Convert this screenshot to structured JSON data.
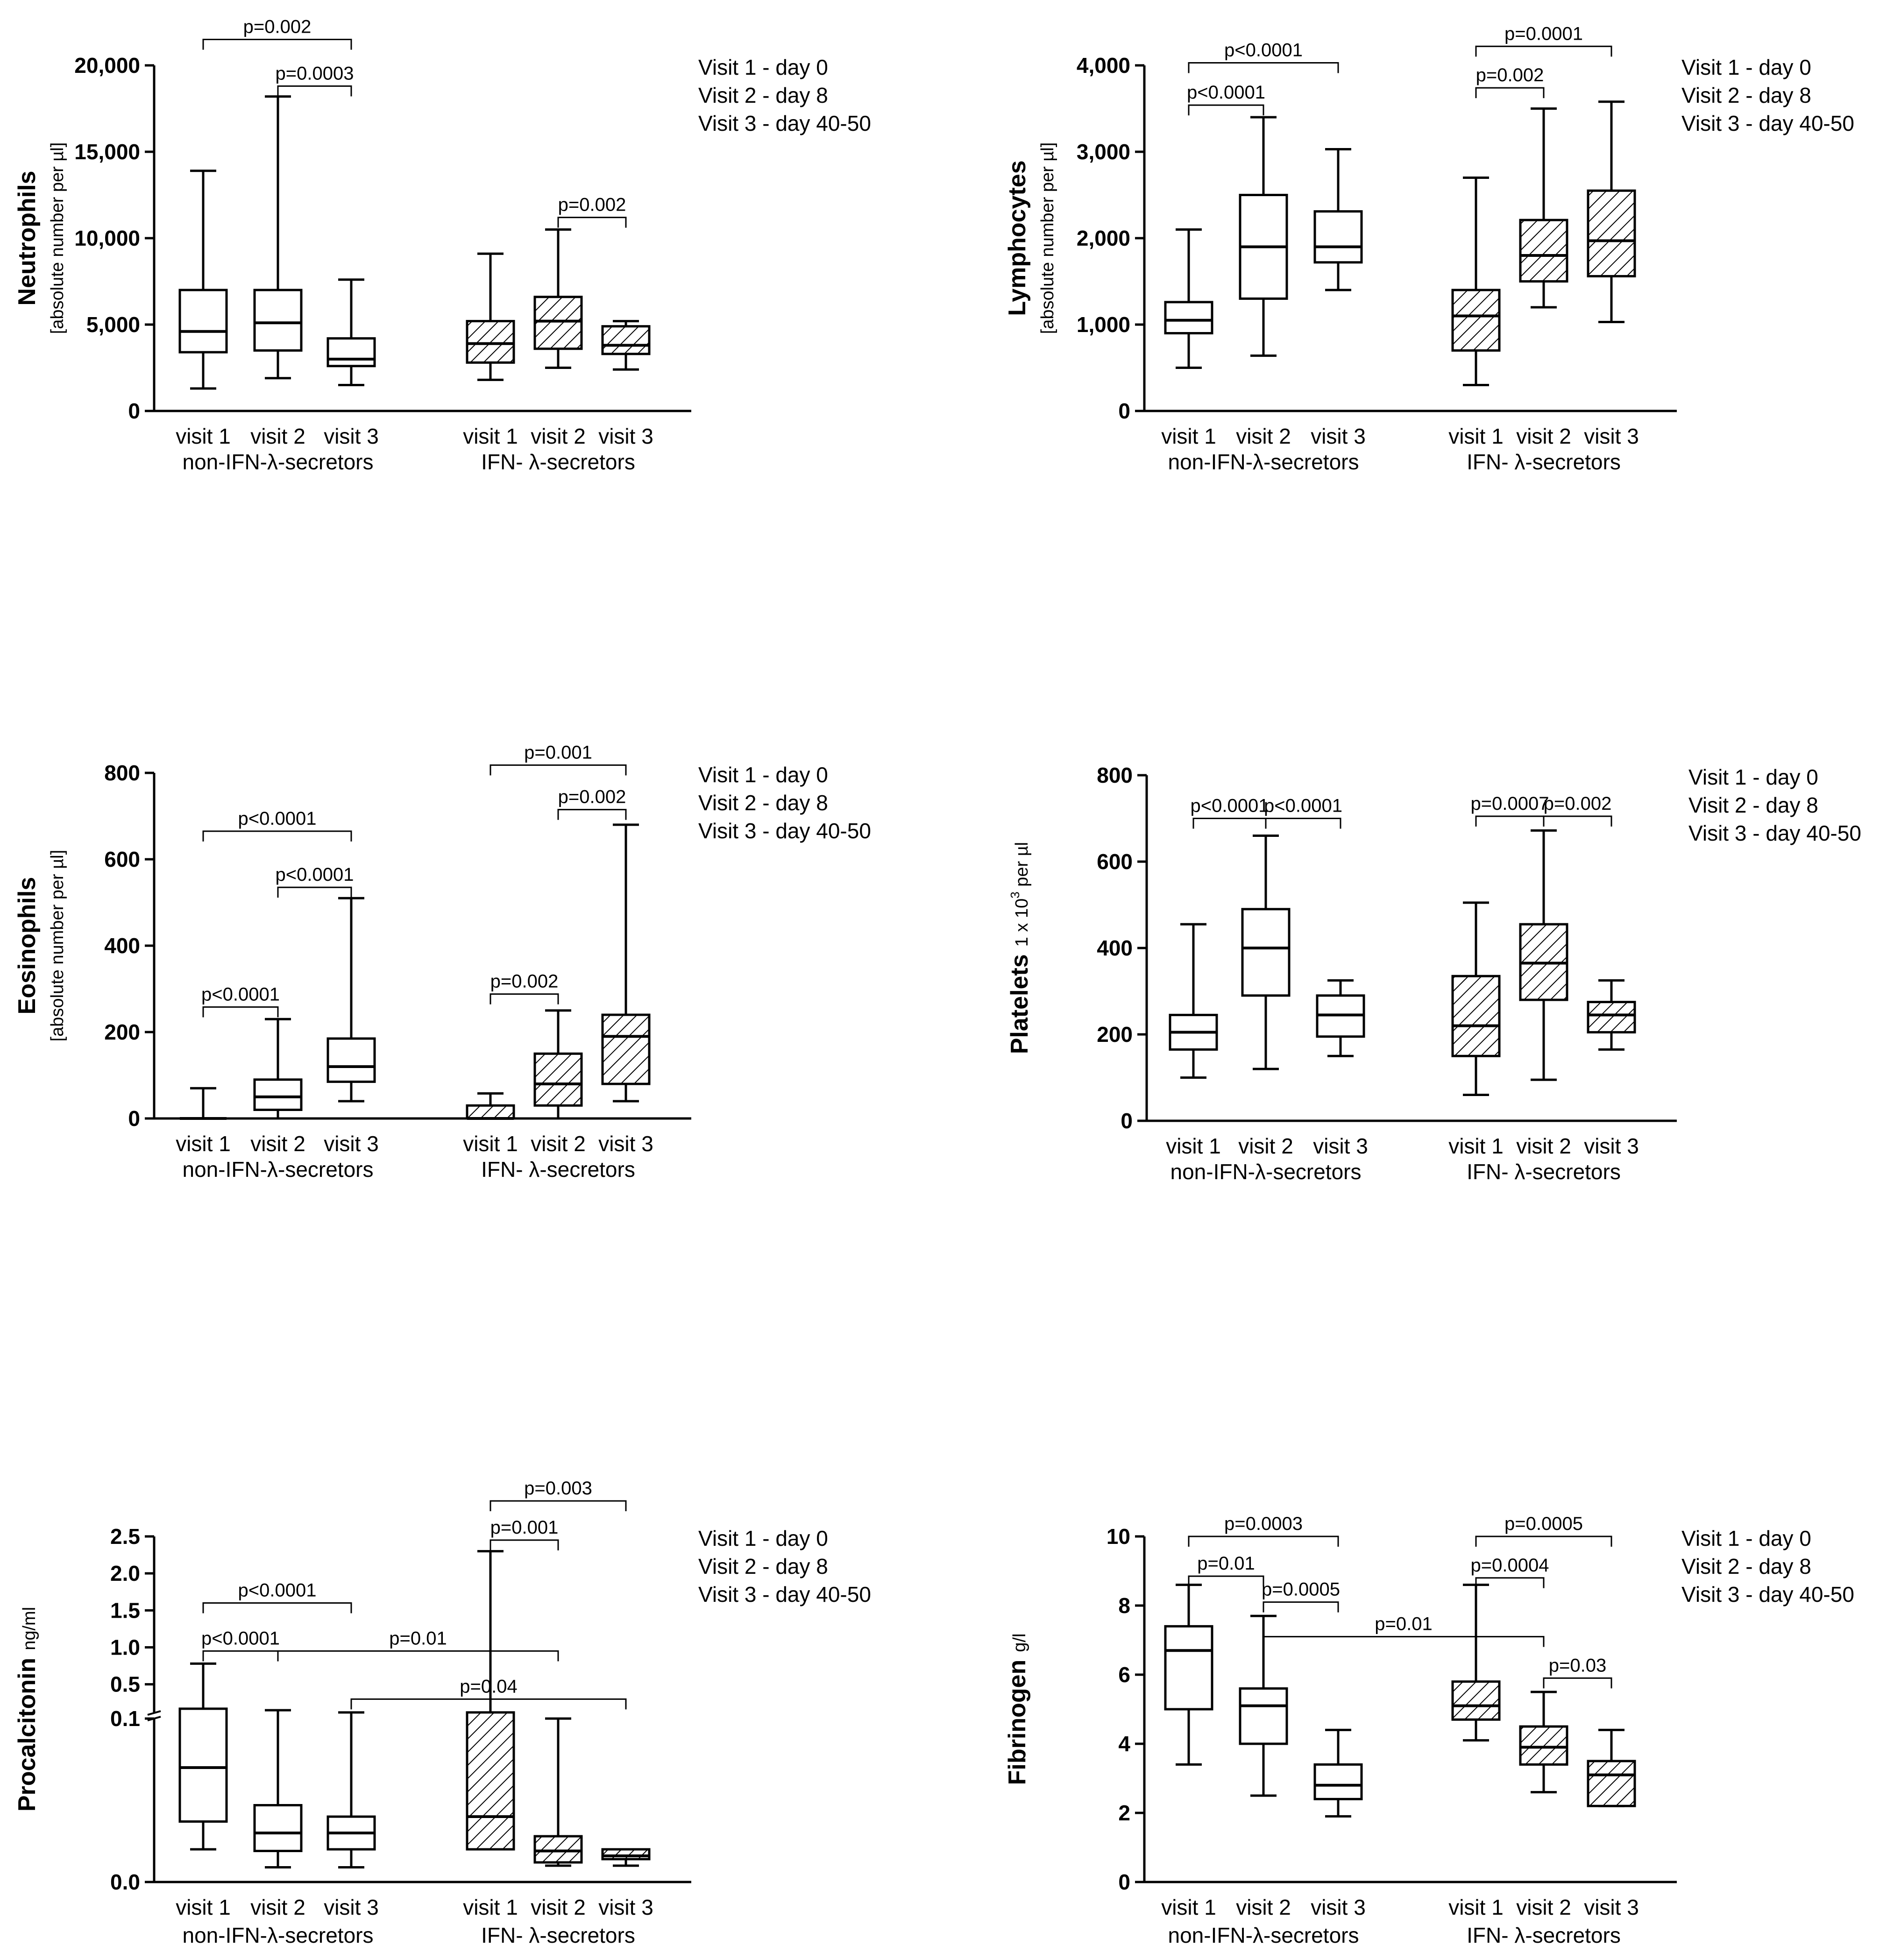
{
  "panels": [
    {
      "ylabel": "Neutrophils",
      "yunit": "[absolute number per  µl]",
      "legend": [
        "Visit 1 - day 0",
        "Visit 2 - day 8",
        "Visit 3 - day 40-50"
      ],
      "chart_data": {
        "type": "box",
        "categories": [
          "visit 1",
          "visit 2",
          "visit 3",
          "visit 1",
          "visit 2",
          "visit 3"
        ],
        "groups": [
          "non-IFN-λ-secretors",
          "IFN- λ-secretors"
        ],
        "yticks": [
          "0",
          "5,000",
          "10,000",
          "15,000",
          "20,000"
        ],
        "ylim": [
          0,
          20000
        ],
        "boxes": [
          {
            "min": 1300,
            "q1": 3400,
            "median": 4600,
            "q3": 7000,
            "max": 13900,
            "hatched": false
          },
          {
            "min": 1900,
            "q1": 3500,
            "median": 5100,
            "q3": 7000,
            "max": 18200,
            "hatched": false
          },
          {
            "min": 1500,
            "q1": 2600,
            "median": 3000,
            "q3": 4200,
            "max": 7600,
            "hatched": false
          },
          {
            "min": 1800,
            "q1": 2800,
            "median": 3900,
            "q3": 5200,
            "max": 9100,
            "hatched": true
          },
          {
            "min": 2500,
            "q1": 3600,
            "median": 5200,
            "q3": 6600,
            "max": 10500,
            "hatched": true
          },
          {
            "min": 2400,
            "q1": 3300,
            "median": 3800,
            "q3": 4900,
            "max": 5200,
            "hatched": true
          }
        ],
        "annotations": [
          {
            "text": "p=0.002",
            "from": 0,
            "to": 2,
            "y": 21500
          },
          {
            "text": "p=0.0003",
            "from": 1,
            "to": 2,
            "y": 18800
          },
          {
            "text": "p=0.002",
            "from": 4,
            "to": 5,
            "y": 11200
          }
        ]
      }
    },
    {
      "ylabel": "Lymphocytes",
      "yunit": "[absolute number per  µl]",
      "legend": [
        "Visit 1 - day 0",
        "Visit 2 - day 8",
        "Visit 3 - day 40-50"
      ],
      "chart_data": {
        "type": "box",
        "categories": [
          "visit 1",
          "visit 2",
          "visit 3",
          "visit 1",
          "visit 2",
          "visit 3"
        ],
        "groups": [
          "non-IFN-λ-secretors",
          "IFN- λ-secretors"
        ],
        "yticks": [
          "0",
          "1,000",
          "2,000",
          "3,000",
          "4,000"
        ],
        "ylim": [
          0,
          4000
        ],
        "boxes": [
          {
            "min": 500,
            "q1": 900,
            "median": 1050,
            "q3": 1260,
            "max": 2100,
            "hatched": false
          },
          {
            "min": 640,
            "q1": 1300,
            "median": 1900,
            "q3": 2500,
            "max": 3400,
            "hatched": false
          },
          {
            "min": 1400,
            "q1": 1720,
            "median": 1900,
            "q3": 2310,
            "max": 3030,
            "hatched": false
          },
          {
            "min": 300,
            "q1": 700,
            "median": 1100,
            "q3": 1400,
            "max": 2700,
            "hatched": true
          },
          {
            "min": 1200,
            "q1": 1500,
            "median": 1800,
            "q3": 2210,
            "max": 3500,
            "hatched": true
          },
          {
            "min": 1030,
            "q1": 1560,
            "median": 1970,
            "q3": 2550,
            "max": 3580,
            "hatched": true
          }
        ],
        "annotations": [
          {
            "text": "p<0.0001",
            "from": 0,
            "to": 2,
            "y": 4030
          },
          {
            "text": "p<0.0001",
            "from": 0,
            "to": 1,
            "y": 3540
          },
          {
            "text": "p=0.0001",
            "from": 3,
            "to": 5,
            "y": 4220
          },
          {
            "text": "p=0.002",
            "from": 3,
            "to": 4,
            "y": 3740
          }
        ]
      }
    },
    {
      "ylabel": "Eosinophils",
      "yunit": "[absolute number per  µl]",
      "legend": [
        "Visit 1 - day 0",
        "Visit 2 - day 8",
        "Visit 3 - day 40-50"
      ],
      "chart_data": {
        "type": "box",
        "categories": [
          "visit 1",
          "visit 2",
          "visit 3",
          "visit 1",
          "visit 2",
          "visit 3"
        ],
        "groups": [
          "non-IFN-λ-secretors",
          "IFN- λ-secretors"
        ],
        "yticks": [
          "0",
          "200",
          "400",
          "600",
          "800"
        ],
        "ylim": [
          0,
          800
        ],
        "boxes": [
          {
            "min": 0,
            "q1": 0,
            "median": 0,
            "q3": 0,
            "max": 70,
            "hatched": false
          },
          {
            "min": 0,
            "q1": 20,
            "median": 50,
            "q3": 90,
            "max": 230,
            "hatched": false
          },
          {
            "min": 40,
            "q1": 85,
            "median": 120,
            "q3": 185,
            "max": 510,
            "hatched": false
          },
          {
            "min": 0,
            "q1": 0,
            "median": 0,
            "q3": 30,
            "max": 58,
            "hatched": true
          },
          {
            "min": 0,
            "q1": 30,
            "median": 80,
            "q3": 150,
            "max": 250,
            "hatched": true
          },
          {
            "min": 40,
            "q1": 80,
            "median": 190,
            "q3": 240,
            "max": 680,
            "hatched": true
          }
        ],
        "annotations": [
          {
            "text": "p<0.0001",
            "from": 0,
            "to": 2,
            "y": 665
          },
          {
            "text": "p<0.0001",
            "from": 1,
            "to": 2,
            "y": 535
          },
          {
            "text": "p<0.0001",
            "from": 0,
            "to": 1,
            "y": 258
          },
          {
            "text": "p=0.001",
            "from": 3,
            "to": 5,
            "y": 818
          },
          {
            "text": "p=0.002",
            "from": 4,
            "to": 5,
            "y": 715
          },
          {
            "text": "p=0.002",
            "from": 3,
            "to": 4,
            "y": 288
          }
        ]
      }
    },
    {
      "ylabel": "Platelets",
      "yunit_parts": [
        "1 x 10",
        "3",
        " per µl"
      ],
      "legend": [
        "Visit 1 - day 0",
        "Visit 2 - day 8",
        "Visit 3 - day 40-50"
      ],
      "chart_data": {
        "type": "box",
        "categories": [
          "visit 1",
          "visit 2",
          "visit 3",
          "visit 1",
          "visit 2",
          "visit 3"
        ],
        "groups": [
          "non-IFN-λ-secretors",
          "IFN- λ-secretors"
        ],
        "yticks": [
          "0",
          "200",
          "400",
          "600",
          "800"
        ],
        "ylim": [
          0,
          800
        ],
        "boxes": [
          {
            "min": 100,
            "q1": 165,
            "median": 205,
            "q3": 245,
            "max": 455,
            "hatched": false
          },
          {
            "min": 120,
            "q1": 290,
            "median": 400,
            "q3": 490,
            "max": 660,
            "hatched": false
          },
          {
            "min": 150,
            "q1": 195,
            "median": 245,
            "q3": 290,
            "max": 325,
            "hatched": false
          },
          {
            "min": 60,
            "q1": 150,
            "median": 220,
            "q3": 335,
            "max": 505,
            "hatched": true
          },
          {
            "min": 95,
            "q1": 280,
            "median": 365,
            "q3": 455,
            "max": 672,
            "hatched": true
          },
          {
            "min": 165,
            "q1": 205,
            "median": 245,
            "q3": 275,
            "max": 325,
            "hatched": true
          }
        ],
        "annotations": [
          {
            "text": "p<0.0001",
            "from": 0,
            "to": 1,
            "y": 700
          },
          {
            "text": "p<0.0001",
            "from": 1,
            "to": 2,
            "y": 700
          },
          {
            "text": "p=0.0007",
            "from": 3,
            "to": 4,
            "y": 705
          },
          {
            "text": "p=0.002",
            "from": 4,
            "to": 5,
            "y": 705
          }
        ]
      }
    },
    {
      "ylabel": "Procalcitonin",
      "yunit": "ng/ml",
      "legend": [
        "Visit 1 - day 0",
        "Visit 2 - day 8",
        "Visit 3 - day 40-50"
      ],
      "chart_data": {
        "type": "box",
        "categories": [
          "visit 1",
          "visit 2",
          "visit 3",
          "visit 1",
          "visit 2",
          "visit 3"
        ],
        "groups": [
          "non-IFN-λ-secretors",
          "IFN- λ-secretors"
        ],
        "axis_break": 0.1,
        "yticks_lower": [
          "0.0",
          "0.1"
        ],
        "yticks_upper": [
          "0.5",
          "1.0",
          "1.5",
          "2.0",
          "2.5"
        ],
        "ylim_lower": [
          0,
          0.1
        ],
        "ylim_upper": [
          0.1,
          2.5
        ],
        "boxes": [
          {
            "min": 0.02,
            "q1": 0.037,
            "median": 0.07,
            "q3": 0.17,
            "max": 0.78,
            "hatched": false
          },
          {
            "min": 0.009,
            "q1": 0.019,
            "median": 0.03,
            "q3": 0.047,
            "max": 0.15,
            "hatched": false
          },
          {
            "min": 0.009,
            "q1": 0.02,
            "median": 0.03,
            "q3": 0.04,
            "max": 0.12,
            "hatched": false
          },
          {
            "min": 0.02,
            "q1": 0.02,
            "median": 0.04,
            "q3": 0.12,
            "max": 2.3,
            "hatched": true
          },
          {
            "min": 0.01,
            "q1": 0.012,
            "median": 0.019,
            "q3": 0.028,
            "max": 0.1,
            "hatched": true
          },
          {
            "min": 0.01,
            "q1": 0.014,
            "median": 0.016,
            "q3": 0.02,
            "max": 0.02,
            "hatched": true
          }
        ],
        "annotations": [
          {
            "text": "p<0.0001",
            "from": 0,
            "to": 2,
            "y": 1.6
          },
          {
            "text": "p<0.0001",
            "from": 0,
            "to": 1,
            "y": 0.95
          },
          {
            "text": "p=0.01",
            "from": 1,
            "to": 4,
            "y": 0.95
          },
          {
            "text": "p=0.04",
            "from": 2,
            "to": 5,
            "y": 0.3
          },
          {
            "text": "p=0.003",
            "from": 3,
            "to": 5,
            "y": 2.98
          },
          {
            "text": "p=0.001",
            "from": 3,
            "to": 4,
            "y": 2.45
          }
        ]
      }
    },
    {
      "ylabel": "Fibrinogen",
      "yunit": "g/l",
      "legend": [
        "Visit 1 - day 0",
        "Visit 2 - day 8",
        "Visit 3 - day 40-50"
      ],
      "chart_data": {
        "type": "box",
        "categories": [
          "visit 1",
          "visit 2",
          "visit 3",
          "visit 1",
          "visit 2",
          "visit 3"
        ],
        "groups": [
          "non-IFN-λ-secretors",
          "IFN- λ-secretors"
        ],
        "yticks": [
          "0",
          "2",
          "4",
          "6",
          "8",
          "10"
        ],
        "ylim": [
          0,
          10
        ],
        "boxes": [
          {
            "min": 3.4,
            "q1": 5.0,
            "median": 6.7,
            "q3": 7.4,
            "max": 8.6,
            "hatched": false
          },
          {
            "min": 2.5,
            "q1": 4.0,
            "median": 5.1,
            "q3": 5.6,
            "max": 7.7,
            "hatched": false
          },
          {
            "min": 1.9,
            "q1": 2.4,
            "median": 2.8,
            "q3": 3.4,
            "max": 4.4,
            "hatched": false
          },
          {
            "min": 4.1,
            "q1": 4.7,
            "median": 5.1,
            "q3": 5.8,
            "max": 8.6,
            "hatched": true
          },
          {
            "min": 2.6,
            "q1": 3.4,
            "median": 3.9,
            "q3": 4.5,
            "max": 5.5,
            "hatched": true
          },
          {
            "min": 2.2,
            "q1": 2.2,
            "median": 3.1,
            "q3": 3.5,
            "max": 4.4,
            "hatched": true
          }
        ],
        "annotations": [
          {
            "text": "p=0.0003",
            "from": 0,
            "to": 2,
            "y": 10.0
          },
          {
            "text": "p=0.01",
            "from": 0,
            "to": 1,
            "y": 8.85
          },
          {
            "text": "p=0.0005",
            "from": 1,
            "to": 2,
            "y": 8.1
          },
          {
            "text": "p=0.01",
            "from": 1,
            "to": 4,
            "y": 7.1
          },
          {
            "text": "p=0.0005",
            "from": 3,
            "to": 5,
            "y": 10.0
          },
          {
            "text": "p=0.0004",
            "from": 3,
            "to": 4,
            "y": 8.8
          },
          {
            "text": "p=0.03",
            "from": 4,
            "to": 5,
            "y": 5.9
          }
        ]
      }
    }
  ]
}
